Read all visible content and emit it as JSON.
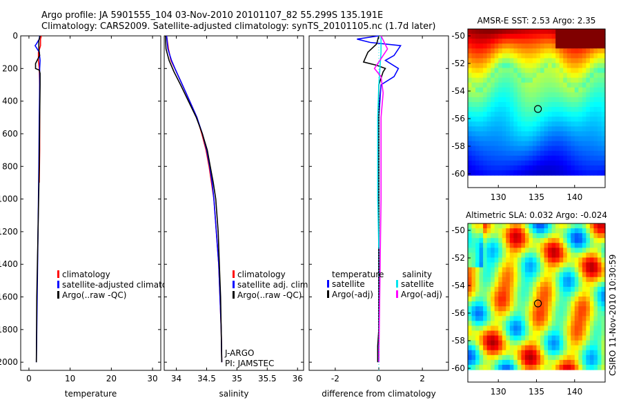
{
  "header": {
    "line1": "Argo profile: JA 5901555_104 03-Nov-2010 20101107_82 55.299S 135.191E",
    "line2": "Climatology: CARS2009. Satellite-adjusted climatology: synTS_20101105.nc (1.7d later)"
  },
  "credit": "CSIRO 11-Nov-2010 10:30:59",
  "colors": {
    "climatology": "#ff0000",
    "satellite": "#0000ff",
    "argo": "#000000",
    "sal_satellite": "#00e5ee",
    "sal_argo": "#ff00ff"
  },
  "chart_data": [
    {
      "type": "line",
      "name": "temperature-profile",
      "xlabel": "temperature",
      "xlim": [
        -2,
        32
      ],
      "xticks": [
        0,
        10,
        20,
        30
      ],
      "ylim": [
        0,
        2050
      ],
      "yticks": [
        0,
        200,
        400,
        600,
        800,
        1000,
        1200,
        1400,
        1600,
        1800,
        2000
      ],
      "yreversed": true,
      "legend": [
        "climatology",
        "satellite-adjusted climatology",
        "Argo(..raw -QC)"
      ],
      "series": [
        {
          "name": "climatology",
          "color": "#ff0000",
          "points": [
            [
              3.0,
              0
            ],
            [
              2.8,
              20
            ],
            [
              2.8,
              60
            ],
            [
              2.3,
              100
            ],
            [
              2.3,
              150
            ],
            [
              2.5,
              200
            ],
            [
              2.6,
              300
            ],
            [
              2.6,
              500
            ],
            [
              2.6,
              700
            ],
            [
              2.5,
              900
            ]
          ]
        },
        {
          "name": "satellite-adjusted climatology",
          "color": "#0000ff",
          "points": [
            [
              2.6,
              0
            ],
            [
              2.5,
              20
            ],
            [
              1.8,
              50
            ],
            [
              1.5,
              60
            ],
            [
              2.0,
              80
            ],
            [
              2.5,
              100
            ],
            [
              2.7,
              150
            ],
            [
              2.6,
              200
            ],
            [
              2.6,
              300
            ],
            [
              2.5,
              500
            ],
            [
              2.4,
              800
            ],
            [
              2.2,
              1200
            ],
            [
              2.0,
              1600
            ],
            [
              1.8,
              2000
            ]
          ]
        },
        {
          "name": "Argo(..raw -QC)",
          "color": "#000000",
          "points": [
            [
              2.7,
              0
            ],
            [
              2.4,
              30
            ],
            [
              2.4,
              80
            ],
            [
              2.6,
              120
            ],
            [
              1.6,
              170
            ],
            [
              1.6,
              200
            ],
            [
              2.5,
              210
            ],
            [
              2.7,
              230
            ],
            [
              2.7,
              300
            ],
            [
              2.6,
              500
            ],
            [
              2.5,
              800
            ],
            [
              2.2,
              1200
            ],
            [
              1.9,
              1600
            ],
            [
              1.8,
              2000
            ]
          ]
        }
      ]
    },
    {
      "type": "line",
      "name": "salinity-profile",
      "xlabel": "salinity",
      "xlim": [
        33.8,
        36.1
      ],
      "xticks": [
        34,
        34.5,
        35,
        35.5,
        36
      ],
      "ylim": [
        0,
        2050
      ],
      "yreversed": true,
      "legend": [
        "climatology",
        "satellite adj. clim.",
        "Argo(..raw -QC)"
      ],
      "annotation": [
        "J-ARGO",
        "PI: JAMSTEC"
      ],
      "series": [
        {
          "name": "climatology",
          "color": "#ff0000",
          "points": [
            [
              33.84,
              0
            ],
            [
              33.87,
              80
            ],
            [
              33.91,
              150
            ],
            [
              34.0,
              220
            ],
            [
              34.1,
              300
            ],
            [
              34.22,
              400
            ],
            [
              34.34,
              500
            ],
            [
              34.42,
              600
            ],
            [
              34.49,
              700
            ],
            [
              34.54,
              800
            ],
            [
              34.58,
              900
            ],
            [
              34.62,
              1000
            ],
            [
              34.66,
              1200
            ],
            [
              34.7,
              1400
            ],
            [
              34.72,
              1600
            ],
            [
              34.74,
              1800
            ],
            [
              34.75,
              2000
            ]
          ]
        },
        {
          "name": "satellite adj. clim.",
          "color": "#0000ff",
          "points": [
            [
              33.84,
              0
            ],
            [
              33.86,
              80
            ],
            [
              33.92,
              150
            ],
            [
              34.0,
              220
            ],
            [
              34.1,
              300
            ],
            [
              34.22,
              400
            ],
            [
              34.34,
              500
            ],
            [
              34.43,
              600
            ],
            [
              34.5,
              700
            ],
            [
              34.55,
              800
            ],
            [
              34.59,
              900
            ],
            [
              34.62,
              1000
            ],
            [
              34.66,
              1200
            ],
            [
              34.7,
              1400
            ],
            [
              34.72,
              1600
            ],
            [
              34.74,
              1800
            ],
            [
              34.75,
              2000
            ]
          ]
        },
        {
          "name": "Argo(..raw -QC)",
          "color": "#000000",
          "points": [
            [
              33.82,
              0
            ],
            [
              33.83,
              80
            ],
            [
              33.88,
              150
            ],
            [
              33.96,
              220
            ],
            [
              34.07,
              300
            ],
            [
              34.2,
              400
            ],
            [
              34.33,
              500
            ],
            [
              34.43,
              600
            ],
            [
              34.51,
              700
            ],
            [
              34.56,
              800
            ],
            [
              34.61,
              900
            ],
            [
              34.65,
              1000
            ],
            [
              34.69,
              1200
            ],
            [
              34.71,
              1400
            ],
            [
              34.73,
              1600
            ],
            [
              34.74,
              1800
            ],
            [
              34.75,
              2000
            ]
          ]
        }
      ]
    },
    {
      "type": "line",
      "name": "difference-profile",
      "xlabel": "difference from climatology",
      "xlim": [
        -3.2,
        3.2
      ],
      "xticks": [
        -2,
        0,
        2
      ],
      "ylim": [
        0,
        2050
      ],
      "yreversed": true,
      "legend_left_title": "temperature",
      "legend_left": [
        "satellite",
        "Argo(-adj)"
      ],
      "legend_right_title": "salinity",
      "legend_right": [
        "satellite",
        "Argo(-adj)"
      ],
      "series": [
        {
          "name": "temperature satellite",
          "color": "#0000ff",
          "points": [
            [
              0,
              0
            ],
            [
              -1.0,
              20
            ],
            [
              -0.4,
              40
            ],
            [
              1.0,
              60
            ],
            [
              0.7,
              120
            ],
            [
              0.3,
              150
            ],
            [
              0.9,
              200
            ],
            [
              0.7,
              250
            ],
            [
              0.1,
              300
            ],
            [
              0.0,
              500
            ],
            [
              0.0,
              2000
            ]
          ]
        },
        {
          "name": "temperature Argo(-adj)",
          "color": "#000000",
          "points": [
            [
              0,
              0
            ],
            [
              -0.1,
              50
            ],
            [
              -0.5,
              100
            ],
            [
              -0.7,
              160
            ],
            [
              -0.1,
              180
            ],
            [
              0.3,
              200
            ],
            [
              0.2,
              220
            ],
            [
              0.0,
              300
            ],
            [
              0.0,
              1800
            ],
            [
              -0.05,
              1900
            ],
            [
              -0.05,
              2000
            ]
          ]
        },
        {
          "name": "salinity satellite",
          "color": "#00e5ee",
          "points": [
            [
              0.1,
              0
            ],
            [
              0.1,
              100
            ],
            [
              0.05,
              200
            ],
            [
              0,
              300
            ],
            [
              -0.05,
              500
            ],
            [
              -0.05,
              1000
            ],
            [
              0,
              1300
            ]
          ]
        },
        {
          "name": "salinity Argo(-adj)",
          "color": "#ff00ff",
          "points": [
            [
              0.1,
              0
            ],
            [
              0.4,
              80
            ],
            [
              -0.2,
              200
            ],
            [
              0.1,
              250
            ],
            [
              0.2,
              350
            ],
            [
              0.1,
              500
            ],
            [
              0.1,
              1000
            ],
            [
              0.05,
              1500
            ],
            [
              0.0,
              2000
            ]
          ]
        }
      ]
    },
    {
      "type": "heatmap",
      "name": "sst-map",
      "title": "AMSR-E SST: 2.53  Argo: 2.35",
      "xlim": [
        126,
        144
      ],
      "xticks": [
        130,
        135,
        140
      ],
      "ylim": [
        -61,
        -49.5
      ],
      "yticks": [
        -50,
        -52,
        -54,
        -56,
        -58,
        -60
      ],
      "marker": [
        135.191,
        -55.299
      ]
    },
    {
      "type": "heatmap",
      "name": "sla-map",
      "title": "Altimetric SLA: 0.032  Argo: -0.024",
      "xlim": [
        126,
        144
      ],
      "xticks": [
        130,
        135,
        140
      ],
      "ylim": [
        -61,
        -49.5
      ],
      "yticks": [
        -50,
        -52,
        -54,
        -56,
        -58,
        -60
      ],
      "marker": [
        135.191,
        -55.299
      ]
    }
  ]
}
